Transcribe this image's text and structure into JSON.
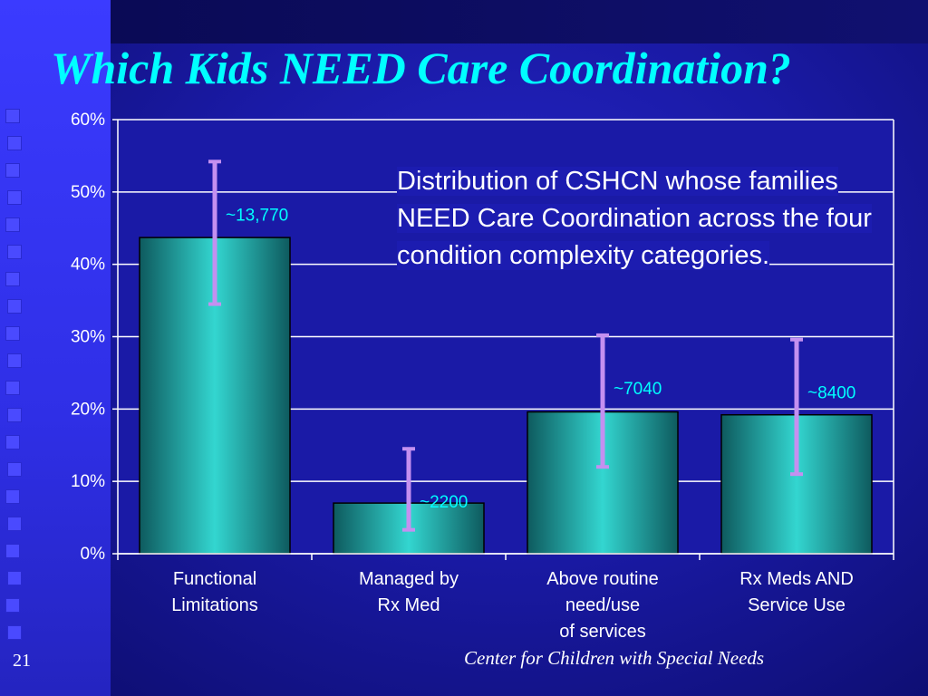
{
  "slide": {
    "title": "Which Kids NEED Care Coordination?",
    "page_number": "21",
    "footer": "Center for Children with Special Needs",
    "description": "Distribution of CSHCN whose families NEED Care Coordination across the four condition complexity categories."
  },
  "colors": {
    "title": "#00ffff",
    "bar_center": "#33d6d0",
    "bar_edge": "#0e5a5e",
    "error_bar": "#c490f0",
    "label": "#00ffff",
    "grid": "#ffffff"
  },
  "chart_data": {
    "type": "bar",
    "categories": [
      [
        "Functional",
        "Limitations"
      ],
      [
        "Managed by",
        "Rx Med"
      ],
      [
        "Above routine",
        "need/use",
        "of services"
      ],
      [
        "Rx Meds AND",
        "Service Use"
      ]
    ],
    "values": [
      43.7,
      7.0,
      19.6,
      19.2
    ],
    "error_low": [
      34.5,
      3.3,
      12.0,
      11.0
    ],
    "error_high": [
      54.2,
      14.5,
      30.2,
      29.6
    ],
    "data_labels": [
      "~13,770",
      "~2200",
      "~7040",
      "~8400"
    ],
    "y_ticks": [
      "0%",
      "10%",
      "20%",
      "30%",
      "40%",
      "50%",
      "60%"
    ],
    "ylim": [
      0,
      60
    ],
    "grid": true,
    "title": "",
    "xlabel": "",
    "ylabel": ""
  }
}
